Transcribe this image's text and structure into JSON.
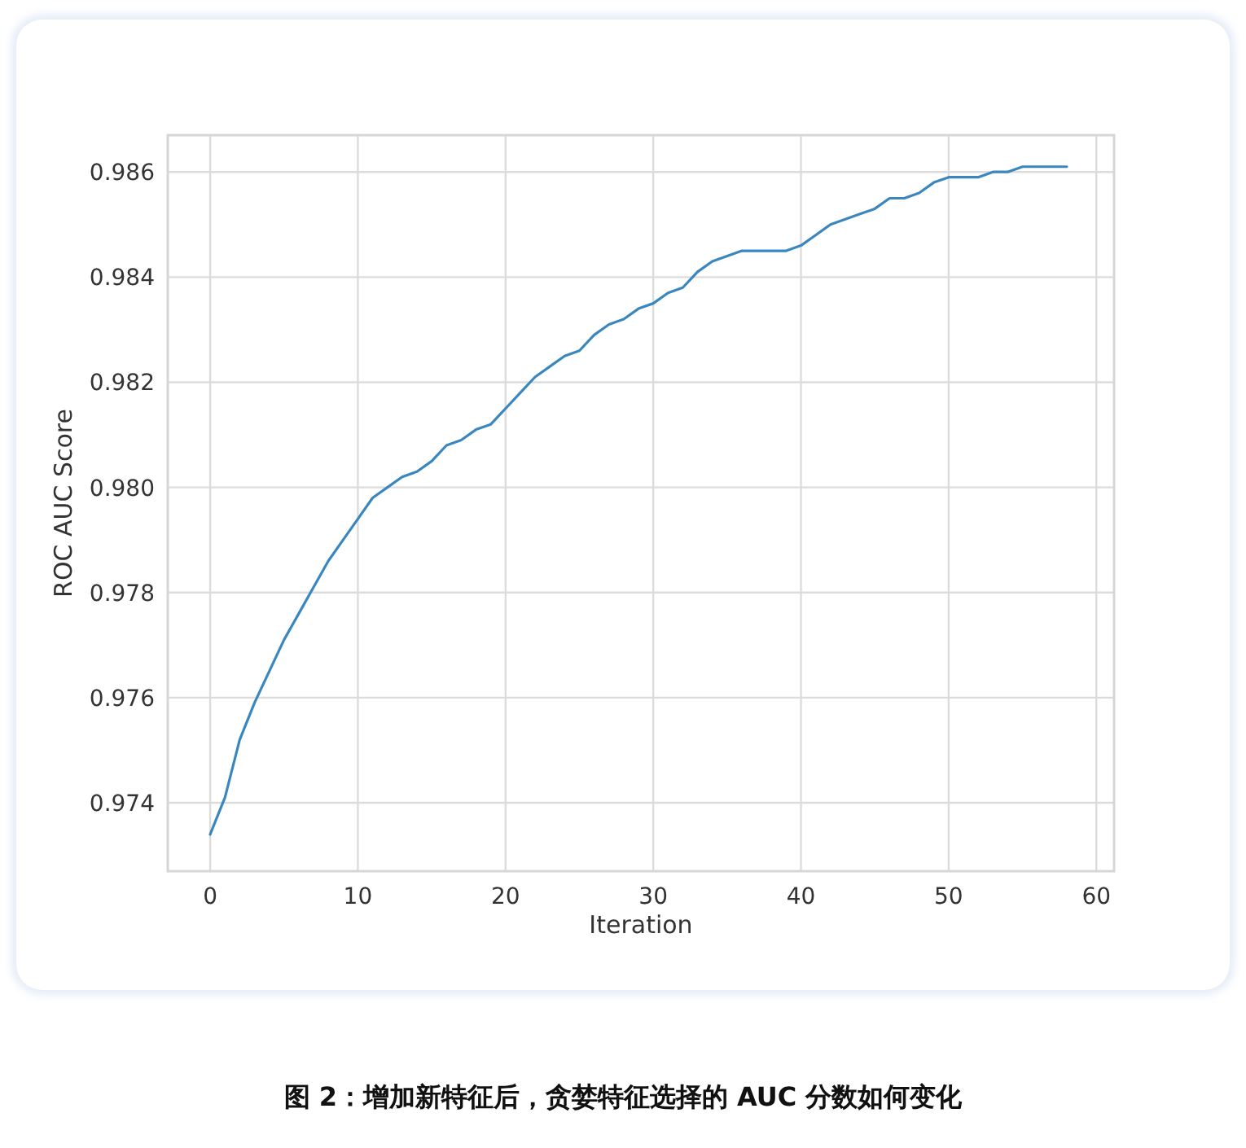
{
  "chart_data": {
    "type": "line",
    "xlabel": "Iteration",
    "ylabel": "ROC AUC Score",
    "annotations": [
      "图 2：增加新特征后，贪婪特征选择的 AUC 分数如何变化"
    ],
    "x": [
      0,
      1,
      2,
      3,
      4,
      5,
      6,
      7,
      8,
      9,
      10,
      11,
      12,
      13,
      14,
      15,
      16,
      17,
      18,
      19,
      20,
      21,
      22,
      23,
      24,
      25,
      26,
      27,
      28,
      29,
      30,
      31,
      32,
      33,
      34,
      35,
      36,
      37,
      38,
      39,
      40,
      41,
      42,
      43,
      44,
      45,
      46,
      47,
      48,
      49,
      50,
      51,
      52,
      53,
      54,
      55,
      56,
      57,
      58
    ],
    "series": [
      {
        "color": "#3a87c0",
        "values": [
          0.9734,
          0.9741,
          0.9752,
          0.9759,
          0.9765,
          0.9771,
          0.9776,
          0.9781,
          0.9786,
          0.979,
          0.9794,
          0.9798,
          0.98,
          0.9802,
          0.9803,
          0.9805,
          0.9808,
          0.9809,
          0.9811,
          0.9812,
          0.9815,
          0.9818,
          0.9821,
          0.9823,
          0.9825,
          0.9826,
          0.9829,
          0.9831,
          0.9832,
          0.9834,
          0.9835,
          0.9837,
          0.9838,
          0.9841,
          0.9843,
          0.9844,
          0.9845,
          0.9845,
          0.9845,
          0.9845,
          0.9846,
          0.9848,
          0.985,
          0.9851,
          0.9852,
          0.9853,
          0.9855,
          0.9855,
          0.9856,
          0.9858,
          0.9859,
          0.9859,
          0.9859,
          0.986,
          0.986,
          0.9861,
          0.9861,
          0.9861,
          0.9861
        ]
      }
    ],
    "xlim": [
      -2.87,
      61.2
    ],
    "ylim": [
      0.9727,
      0.9867
    ],
    "xticks": [
      0,
      10,
      20,
      30,
      40,
      50,
      60
    ],
    "yticks": [
      {
        "value": 0.974,
        "label": "0.974"
      },
      {
        "value": 0.976,
        "label": "0.976"
      },
      {
        "value": 0.978,
        "label": "0.978"
      },
      {
        "value": 0.98,
        "label": "0.980"
      },
      {
        "value": 0.982,
        "label": "0.982"
      },
      {
        "value": 0.984,
        "label": "0.984"
      },
      {
        "value": 0.986,
        "label": "0.986"
      }
    ],
    "grid": true,
    "marker": "none",
    "line_style": "solid"
  }
}
